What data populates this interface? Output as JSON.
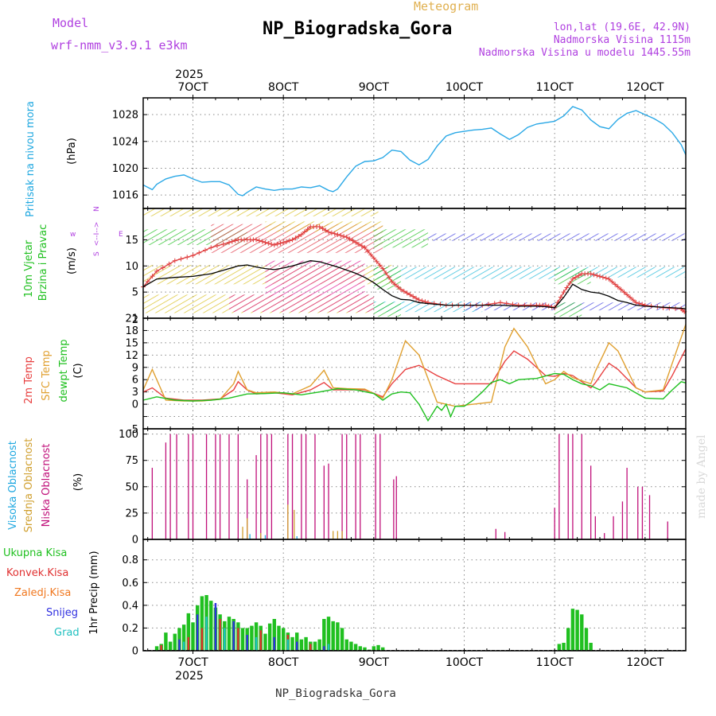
{
  "header": {
    "model_label": "Model",
    "model_name": "wrf-nmm_v3.9.1 e3km",
    "subtitle": "Meteogram",
    "title": "NP_Biogradska_Gora",
    "lonlat": "lon,lat (19.6E, 42.9N)",
    "elevation": "Nadmorska Visina 1115m",
    "model_elevation": "Nadmorska Visina u modelu 1445.55m",
    "footer_title": "NP_Biogradska_Gora",
    "credit": "made by Angel"
  },
  "time_axis": {
    "year": "2025",
    "ticks": [
      "7OCT",
      "8OCT",
      "9OCT",
      "10OCT",
      "11OCT",
      "12OCT"
    ],
    "range_days": [
      6.45,
      12.45
    ]
  },
  "colors": {
    "pressure": "#2aa8e6",
    "temp2m": "#e84040",
    "sfc": "#e0a030",
    "dew": "#20c020",
    "high_cloud": "#20a8e0",
    "mid_cloud": "#d0a030",
    "low_cloud": "#c0107a",
    "precip_total": "#20c020",
    "precip_conv": "#e03030",
    "precip_ice": "#f07820",
    "precip_snow": "#3030e0",
    "precip_graupel": "#20c0c0",
    "wind_speed": "#e04040",
    "wind_label": "#20c020",
    "compass": "#b040e0",
    "header_purple": "#b040e0",
    "header_orange": "#e0b050"
  },
  "chart_data": [
    {
      "type": "line",
      "panel": "pressure",
      "ylabel_main": "Pritisak na nivou mora",
      "ylabel_unit": "(hPa)",
      "ylim": [
        1014,
        1030.5
      ],
      "yticks": [
        1016,
        1020,
        1024,
        1028
      ],
      "series": [
        {
          "name": "Pressure",
          "x": [
            6.45,
            6.55,
            6.6,
            6.7,
            6.8,
            6.9,
            7.0,
            7.1,
            7.2,
            7.3,
            7.4,
            7.5,
            7.55,
            7.6,
            7.7,
            7.8,
            7.9,
            8.0,
            8.1,
            8.2,
            8.3,
            8.4,
            8.5,
            8.55,
            8.6,
            8.7,
            8.8,
            8.9,
            9.0,
            9.1,
            9.2,
            9.3,
            9.4,
            9.5,
            9.6,
            9.7,
            9.8,
            9.9,
            10.0,
            10.1,
            10.2,
            10.3,
            10.4,
            10.5,
            10.6,
            10.7,
            10.8,
            10.9,
            11.0,
            11.1,
            11.2,
            11.3,
            11.4,
            11.5,
            11.6,
            11.7,
            11.8,
            11.9,
            12.0,
            12.1,
            12.2,
            12.3,
            12.4,
            12.45
          ],
          "values": [
            1017.5,
            1016.8,
            1017.6,
            1018.4,
            1018.8,
            1019.0,
            1018.4,
            1017.9,
            1018.0,
            1018.0,
            1017.5,
            1016.1,
            1015.9,
            1016.4,
            1017.2,
            1016.9,
            1016.7,
            1016.9,
            1016.9,
            1017.2,
            1017.1,
            1017.4,
            1016.7,
            1016.5,
            1016.9,
            1018.7,
            1020.3,
            1021.0,
            1021.1,
            1021.6,
            1022.7,
            1022.5,
            1021.2,
            1020.5,
            1021.3,
            1023.3,
            1024.8,
            1025.3,
            1025.5,
            1025.7,
            1025.8,
            1026.0,
            1025.1,
            1024.3,
            1025.0,
            1026.1,
            1026.6,
            1026.8,
            1027.0,
            1027.8,
            1029.2,
            1028.7,
            1027.2,
            1026.2,
            1025.9,
            1027.3,
            1028.2,
            1028.6,
            1028.0,
            1027.4,
            1026.6,
            1025.3,
            1023.5,
            1022.0
          ]
        }
      ]
    },
    {
      "type": "line",
      "panel": "wind",
      "ylabel_main_1": "10m Vjetar",
      "ylabel_main_2": "Brzina i Pravac",
      "ylabel_unit": "(m/s)",
      "compass_labels": [
        "w",
        "E",
        "<--I-->",
        "N",
        "S"
      ],
      "ylim": [
        0,
        21
      ],
      "yticks": [
        5,
        10,
        15
      ],
      "series": [
        {
          "name": "Wind speed",
          "x": [
            6.45,
            6.6,
            6.8,
            7.0,
            7.2,
            7.4,
            7.5,
            7.6,
            7.7,
            7.8,
            7.9,
            8.0,
            8.1,
            8.2,
            8.3,
            8.4,
            8.5,
            8.6,
            8.7,
            8.8,
            8.9,
            9.0,
            9.1,
            9.2,
            9.3,
            9.4,
            9.5,
            9.6,
            9.8,
            10.0,
            10.2,
            10.4,
            10.6,
            10.8,
            10.9,
            11.0,
            11.1,
            11.2,
            11.3,
            11.4,
            11.5,
            11.6,
            11.7,
            11.8,
            11.9,
            12.0,
            12.2,
            12.4,
            12.45
          ],
          "values": [
            6,
            9,
            11,
            12,
            13.5,
            14.5,
            15,
            15,
            15,
            14.5,
            14,
            14.5,
            15,
            16,
            17.5,
            17.5,
            16.5,
            16,
            15.5,
            14.5,
            13.5,
            11.5,
            9.5,
            7,
            5.5,
            4.5,
            3.5,
            3,
            2.5,
            2.5,
            2.5,
            3,
            2.5,
            2.5,
            2.5,
            2,
            5,
            7.5,
            8.5,
            8.5,
            8,
            7.5,
            6,
            4.5,
            3,
            2.5,
            2,
            1.8,
            1
          ]
        },
        {
          "name": "Wind speed (black)",
          "x": [
            6.45,
            6.6,
            6.8,
            7.0,
            7.2,
            7.4,
            7.5,
            7.6,
            7.7,
            7.8,
            7.9,
            8.0,
            8.1,
            8.2,
            8.3,
            8.4,
            8.5,
            8.6,
            8.7,
            8.8,
            8.9,
            9.0,
            9.1,
            9.2,
            9.3,
            9.4,
            9.5,
            9.6,
            9.8,
            10.0,
            10.2,
            10.4,
            10.6,
            10.8,
            10.9,
            11.0,
            11.1,
            11.2,
            11.3,
            11.4,
            11.5,
            11.6,
            11.7,
            11.8,
            11.9,
            12.0,
            12.2,
            12.4,
            12.45
          ],
          "values": [
            6,
            7.5,
            7.8,
            8,
            8.5,
            9.5,
            10,
            10.2,
            9.8,
            9.5,
            9.3,
            9.6,
            10,
            10.5,
            11,
            10.8,
            10.3,
            9.8,
            9.2,
            8.6,
            7.8,
            6.8,
            5.5,
            4.3,
            3.6,
            3.5,
            3,
            2.8,
            2.5,
            2.5,
            2.5,
            2.5,
            2.3,
            2.3,
            2.2,
            2,
            4,
            6.5,
            5.5,
            5,
            4.8,
            4.2,
            3.4,
            3,
            2.5,
            2.3,
            2.1,
            1.9,
            1.8
          ]
        }
      ]
    },
    {
      "type": "line",
      "panel": "temperature",
      "ylabel_main_1": "2m Temp",
      "ylabel_main_2": "SFC Temp",
      "ylabel_main_3": "dewpt Temp",
      "ylabel_unit": "(C)",
      "ylim": [
        -6,
        21
      ],
      "yticks": [
        -3,
        0,
        3,
        6,
        9,
        12,
        15,
        18,
        21
      ],
      "tick_labels": [
        "0",
        "3",
        "6",
        "9",
        "12",
        "15",
        "18",
        "21"
      ],
      "bottom_label": "-5",
      "series": [
        {
          "name": "2m Temp",
          "x": [
            6.45,
            6.55,
            6.7,
            6.9,
            7.1,
            7.3,
            7.45,
            7.5,
            7.6,
            7.7,
            7.9,
            8.1,
            8.3,
            8.45,
            8.55,
            8.7,
            8.9,
            9.1,
            9.2,
            9.35,
            9.5,
            9.7,
            9.9,
            10.1,
            10.3,
            10.45,
            10.55,
            10.7,
            10.9,
            11.0,
            11.1,
            11.2,
            11.4,
            11.45,
            11.6,
            11.7,
            11.9,
            12.0,
            12.2,
            12.3,
            12.45
          ],
          "values": [
            3,
            4,
            1.5,
            1,
            1,
            1.3,
            3.5,
            5.5,
            3.5,
            2.5,
            2.8,
            2.3,
            3.5,
            5.3,
            3.5,
            3.5,
            3.5,
            1.8,
            5,
            8.5,
            9.5,
            7,
            5,
            5,
            5,
            10.5,
            13,
            11,
            7,
            6.8,
            7.5,
            7,
            4,
            5.2,
            10,
            8.5,
            4,
            3,
            3.2,
            7,
            13.5
          ]
        },
        {
          "name": "SFC Temp",
          "x": [
            6.45,
            6.55,
            6.7,
            6.9,
            7.1,
            7.3,
            7.45,
            7.5,
            7.6,
            7.7,
            7.9,
            8.1,
            8.3,
            8.45,
            8.55,
            8.7,
            8.9,
            9.1,
            9.2,
            9.35,
            9.5,
            9.7,
            9.9,
            10.1,
            10.3,
            10.45,
            10.55,
            10.7,
            10.9,
            11.0,
            11.1,
            11.2,
            11.4,
            11.45,
            11.6,
            11.7,
            11.9,
            12.0,
            12.2,
            12.3,
            12.45
          ],
          "values": [
            3.5,
            8.5,
            1,
            0.8,
            0.8,
            1.2,
            5,
            8,
            3.5,
            2.8,
            3,
            2.5,
            4.5,
            8.3,
            4,
            3.8,
            3.7,
            1.5,
            6,
            15.5,
            12,
            0.5,
            -0.5,
            0,
            0.5,
            14,
            18.5,
            14,
            5,
            6,
            8,
            6.5,
            5,
            8,
            15,
            13,
            4,
            3,
            3.5,
            10,
            19.5
          ]
        },
        {
          "name": "dewpt Temp",
          "x": [
            6.45,
            6.6,
            6.8,
            7.0,
            7.2,
            7.4,
            7.6,
            7.8,
            8.0,
            8.2,
            8.4,
            8.6,
            8.8,
            9.0,
            9.1,
            9.2,
            9.3,
            9.4,
            9.5,
            9.55,
            9.6,
            9.7,
            9.75,
            9.8,
            9.85,
            9.9,
            10.0,
            10.1,
            10.2,
            10.3,
            10.4,
            10.5,
            10.6,
            10.8,
            11.0,
            11.1,
            11.2,
            11.3,
            11.4,
            11.5,
            11.6,
            11.8,
            12.0,
            12.2,
            12.3,
            12.4,
            12.45
          ],
          "values": [
            1,
            1.8,
            1,
            0.8,
            1,
            1.5,
            2.5,
            2.6,
            2.8,
            2.3,
            3,
            3.8,
            3.5,
            2.6,
            1,
            2.5,
            3,
            2.8,
            0,
            -2,
            -4,
            -0.5,
            -1.5,
            0,
            -3,
            -0.5,
            -0.5,
            1,
            3,
            5.3,
            6,
            5,
            6,
            6.3,
            7.5,
            7.3,
            6,
            5,
            4.5,
            3.5,
            5,
            4,
            1.5,
            1.3,
            3.5,
            5.5,
            5.2
          ]
        }
      ]
    },
    {
      "type": "bar",
      "panel": "clouds",
      "ylabel_main_1": "Visoka Oblacnost",
      "ylabel_main_2": "Srednja Oblacnost",
      "ylabel_main_3": "Niska Oblacnost",
      "ylabel_unit": "(%)",
      "ylim": [
        0,
        105
      ],
      "yticks": [
        0,
        25,
        50,
        75,
        100
      ],
      "series": [
        {
          "name": "Niska Oblacnost",
          "x": [
            6.55,
            6.7,
            6.75,
            6.82,
            6.95,
            7.0,
            7.15,
            7.25,
            7.3,
            7.4,
            7.5,
            7.6,
            7.7,
            7.75,
            7.82,
            7.87,
            8.05,
            8.1,
            8.2,
            8.25,
            8.35,
            8.45,
            8.5,
            8.65,
            8.7,
            8.8,
            8.85,
            9.02,
            9.07,
            9.22,
            9.25,
            10.35,
            10.45,
            11.0,
            11.05,
            11.15,
            11.2,
            11.3,
            11.4,
            11.45,
            11.55,
            11.65,
            11.75,
            11.8,
            11.92,
            11.97,
            12.05,
            12.25
          ],
          "values": [
            68,
            92,
            100,
            100,
            100,
            100,
            100,
            100,
            100,
            100,
            100,
            57,
            80,
            100,
            100,
            100,
            100,
            100,
            100,
            100,
            100,
            70,
            72,
            100,
            100,
            100,
            100,
            100,
            100,
            57,
            60,
            10,
            7,
            30,
            100,
            100,
            100,
            100,
            70,
            22,
            6,
            22,
            36,
            68,
            50,
            50,
            42,
            17
          ]
        },
        {
          "name": "Srednja Oblacnost",
          "x": [
            7.55,
            7.6,
            7.75,
            8.05,
            8.12,
            8.55,
            8.6,
            8.65
          ],
          "values": [
            12,
            20,
            6,
            33,
            28,
            8,
            8,
            8
          ]
        },
        {
          "name": "Visoka Oblacnost",
          "x": [
            7.63,
            7.8,
            8.15
          ],
          "values": [
            5,
            4,
            3
          ]
        }
      ]
    },
    {
      "type": "bar",
      "panel": "precip",
      "ylabel_main": "1hr Precip (mm)",
      "legend": [
        "Ukupna Kisa",
        "Konvek.Kisa",
        "Zaledj.Kisa",
        "Snijeg",
        "Grad"
      ],
      "ylim": [
        0,
        0.98
      ],
      "yticks": [
        0,
        0.2,
        0.4,
        0.6,
        0.8
      ],
      "tick_labels": [
        "0",
        "0.2",
        "0.4",
        "0.6",
        "0.8"
      ],
      "series": [
        {
          "name": "Ukupna Kisa",
          "x": [
            6.6,
            6.65,
            6.7,
            6.75,
            6.8,
            6.85,
            6.9,
            6.95,
            7.0,
            7.05,
            7.1,
            7.15,
            7.2,
            7.25,
            7.3,
            7.35,
            7.4,
            7.45,
            7.5,
            7.55,
            7.6,
            7.65,
            7.7,
            7.75,
            7.8,
            7.85,
            7.9,
            7.95,
            8.0,
            8.05,
            8.1,
            8.15,
            8.2,
            8.25,
            8.3,
            8.35,
            8.4,
            8.45,
            8.5,
            8.55,
            8.6,
            8.65,
            8.7,
            8.75,
            8.8,
            8.85,
            8.9,
            8.95,
            9.0,
            9.05,
            9.1,
            11.05,
            11.1,
            11.15,
            11.2,
            11.25,
            11.3,
            11.35,
            11.4
          ],
          "values": [
            0.04,
            0.06,
            0.16,
            0.08,
            0.15,
            0.2,
            0.23,
            0.33,
            0.25,
            0.4,
            0.48,
            0.49,
            0.44,
            0.38,
            0.32,
            0.26,
            0.3,
            0.28,
            0.25,
            0.2,
            0.2,
            0.22,
            0.25,
            0.22,
            0.15,
            0.24,
            0.28,
            0.22,
            0.2,
            0.16,
            0.12,
            0.16,
            0.1,
            0.12,
            0.08,
            0.08,
            0.1,
            0.28,
            0.3,
            0.26,
            0.25,
            0.2,
            0.1,
            0.08,
            0.06,
            0.04,
            0.03,
            0.01,
            0.04,
            0.05,
            0.03,
            0.06,
            0.07,
            0.2,
            0.37,
            0.36,
            0.32,
            0.2,
            0.07
          ]
        },
        {
          "name": "Konvek.Kisa",
          "x": [
            6.65,
            6.95,
            7.1,
            7.3,
            7.5,
            7.75,
            8.05,
            8.3
          ],
          "values": [
            0.05,
            0.12,
            0.2,
            0.28,
            0.2,
            0.18,
            0.14,
            0.06
          ]
        },
        {
          "name": "Snijeg",
          "x": [
            6.85,
            7.05,
            7.25,
            7.45,
            7.6,
            7.9,
            8.15,
            8.45
          ],
          "values": [
            0.1,
            0.32,
            0.42,
            0.26,
            0.14,
            0.12,
            0.08,
            0.04
          ]
        },
        {
          "name": "Grad",
          "x": [
            6.9,
            7.15,
            7.35,
            7.7,
            8.05,
            8.5
          ],
          "values": [
            0.08,
            0.3,
            0.2,
            0.12,
            0.1,
            0.06
          ]
        }
      ]
    }
  ]
}
